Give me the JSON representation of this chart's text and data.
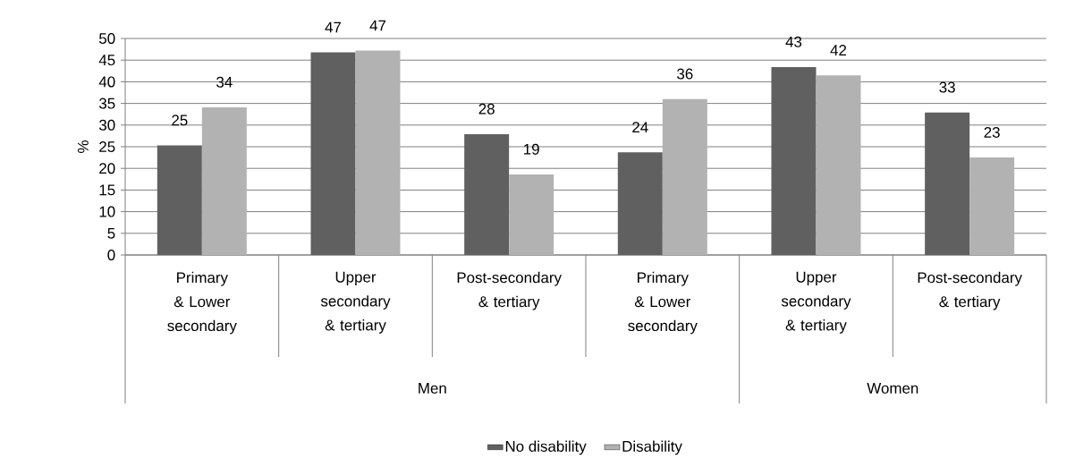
{
  "chart_data": {
    "type": "bar",
    "ylabel": "%",
    "categories": [
      "Primary & Lower secondary",
      "Upper secondary & tertiary",
      "Post-secondary & tertiary",
      "Primary & Lower secondary",
      "Upper secondary & tertiary",
      "Post-secondary & tertiary"
    ],
    "series": [
      {
        "name": "No disability",
        "color": "#606060",
        "values": [
          25.3,
          46.8,
          27.9,
          23.7,
          43.4,
          32.9
        ],
        "value_labels": [
          "25",
          "47",
          "28",
          "24",
          "43",
          "33"
        ]
      },
      {
        "name": "Disability",
        "color": "#b2b2b2",
        "values": [
          34.1,
          47.2,
          18.6,
          36.0,
          41.5,
          22.5
        ],
        "value_labels": [
          "34",
          "47",
          "19",
          "36",
          "42",
          "23"
        ]
      }
    ],
    "annotations": [
      "Men",
      "Women"
    ],
    "ylim": [
      0,
      50
    ],
    "yticks": [
      0,
      5,
      10,
      15,
      20,
      25,
      30,
      35,
      40,
      45,
      50
    ],
    "grid": "y",
    "legend": "bottom"
  }
}
